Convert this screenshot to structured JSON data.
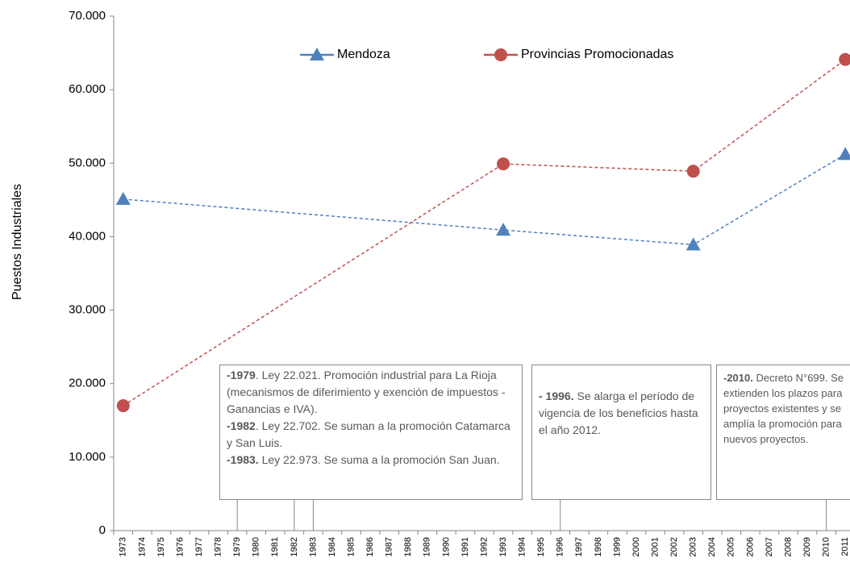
{
  "chart_data": {
    "type": "line",
    "y_label": "Puestos Industriales",
    "x": [
      1973,
      1993,
      2003,
      2011
    ],
    "xlim": [
      1972.5,
      2011.5
    ],
    "xticks": [
      1973,
      1974,
      1975,
      1976,
      1977,
      1978,
      1979,
      1980,
      1981,
      1982,
      1983,
      1984,
      1985,
      1986,
      1987,
      1988,
      1989,
      1990,
      1991,
      1992,
      1993,
      1994,
      1995,
      1996,
      1997,
      1998,
      1999,
      2000,
      2001,
      2002,
      2003,
      2004,
      2005,
      2006,
      2007,
      2008,
      2009,
      2010,
      2011
    ],
    "ylim": [
      0,
      70000
    ],
    "yticks": [
      0,
      {
        "value": 10000,
        "label": "10.000"
      },
      {
        "value": 20000,
        "label": "20.000"
      },
      {
        "value": 30000,
        "label": "30.000"
      },
      {
        "value": 40000,
        "label": "40.000"
      },
      {
        "value": 50000,
        "label": "50.000"
      },
      {
        "value": 60000,
        "label": "60.000"
      },
      {
        "value": 70000,
        "label": "70.000"
      }
    ],
    "legend": "top",
    "dashed": true,
    "series": [
      {
        "name": "Mendoza",
        "color": "#4f81bd",
        "marker": "triangle",
        "values": [
          45100,
          40900,
          38900,
          51200
        ]
      },
      {
        "name": "Provincias Promocionadas",
        "color": "#c0504d",
        "marker": "circle",
        "values": [
          17000,
          49900,
          48900,
          64100
        ]
      }
    ],
    "annotations": [
      {
        "years": [
          1979,
          1982,
          1983
        ],
        "items": [
          {
            "bold": "-1979",
            "text": ". Ley 22.021. Promoción industrial para La Rioja (mecanismos de diferimiento y exención de impuestos -Ganancias e IVA)."
          },
          {
            "bold": "-1982",
            "text": ". Ley 22.702. Se suman a la promoción Catamarca y San Luis."
          },
          {
            "bold": "-1983.",
            "text": " Ley 22.973. Se suma a la promoción San Juan."
          }
        ]
      },
      {
        "years": [
          1996
        ],
        "items": [
          {
            "bold": "- 1996.",
            "text": " Se alarga el período de vigencia de los beneficios hasta el año 2012."
          }
        ]
      },
      {
        "years": [
          2010
        ],
        "items": [
          {
            "bold": "-2010.",
            "text": " Decreto N°699. Se extienden los plazos para proyectos existentes y se amplía la promoción para nuevos proyectos."
          }
        ]
      }
    ]
  }
}
